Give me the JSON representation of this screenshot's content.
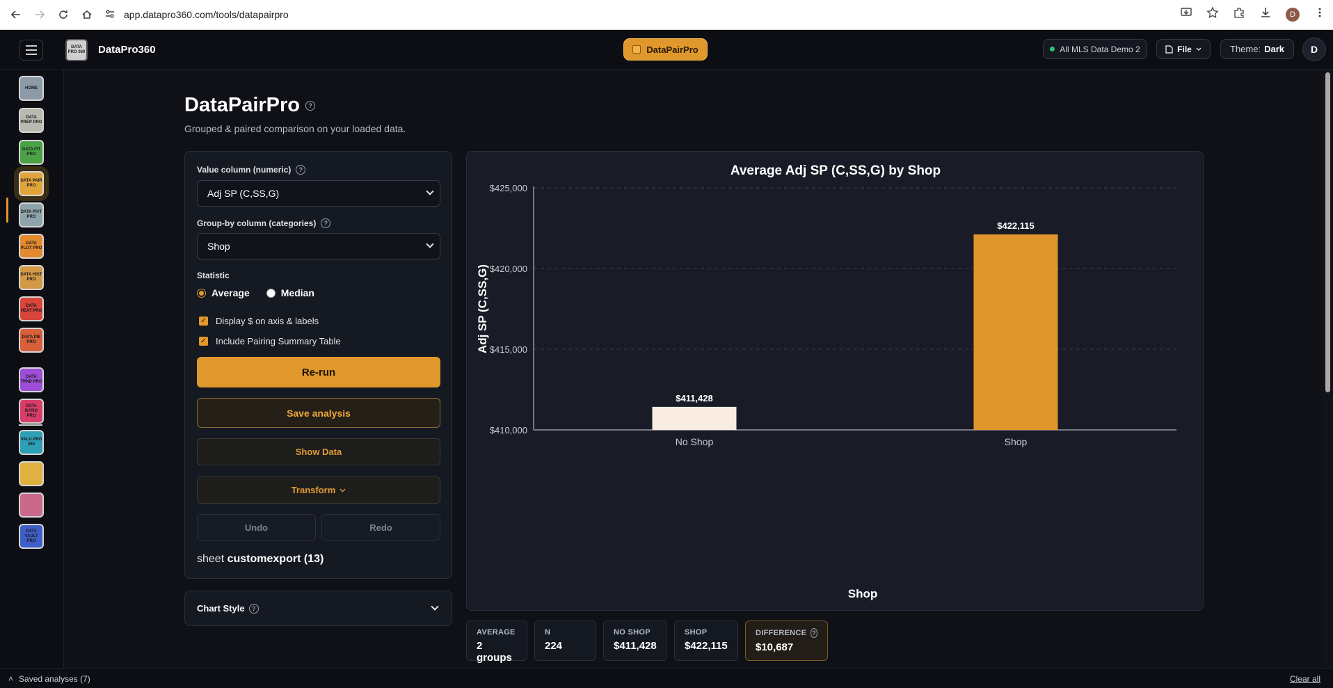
{
  "browser": {
    "url": "app.datapro360.com/tools/datapairpro",
    "profile_initial": "D"
  },
  "header": {
    "brand_name": "DataPro360",
    "brand_logo_text": "DATA PRO 360",
    "tool_pill": "DataPairPro",
    "dataset": "All MLS Data Demo 2",
    "file_label": "File",
    "theme_label": "Theme:",
    "theme_value": "Dark",
    "user_initial": "D"
  },
  "rail": {
    "items": [
      {
        "label": "HOME",
        "icon": "home-icon",
        "color": "#8c9aa8"
      },
      {
        "label": "DATA PREP PRO",
        "icon": "data-prep-pro-icon",
        "color": "#b9b9b0"
      },
      {
        "label": "DATA FIT PRO",
        "icon": "data-fit-pro-icon",
        "color": "#4aa146"
      },
      {
        "label": "DATA PAIR PRO",
        "icon": "data-pair-pro-icon",
        "color": "#e0a43a"
      },
      {
        "label": "DATA PIVT PRO",
        "icon": "data-pivt-pro-icon",
        "color": "#8fa4aa"
      },
      {
        "label": "DATA PLOT PRO",
        "icon": "data-plot-pro-icon",
        "color": "#e38a2f"
      },
      {
        "label": "DATA HIST PRO",
        "icon": "data-hist-pro-icon",
        "color": "#d29a45"
      },
      {
        "label": "DATA HEAT PRO",
        "icon": "data-heat-pro-icon",
        "color": "#d8453b"
      },
      {
        "label": "DATA PIE PRO",
        "icon": "data-pie-pro-icon",
        "color": "#d8603b"
      },
      {
        "label": "DATA TRND PRO",
        "icon": "data-trnd-pro-icon",
        "color": "#9c4fd6"
      },
      {
        "label": "DATA RATIO PRO",
        "icon": "data-ratio-pro-icon",
        "color": "#d83d6a"
      },
      {
        "label": "VALU PRO 360",
        "icon": "valu-pro-360-icon",
        "color": "#2f9fb5"
      },
      {
        "label": "",
        "icon": "grid-tool-icon",
        "color": "#e0b040"
      },
      {
        "label": "",
        "icon": "report-tool-icon",
        "color": "#c96a8a"
      },
      {
        "label": "DATA VAULT PRO",
        "icon": "data-vault-pro-icon",
        "color": "#3f5fc8"
      }
    ]
  },
  "page": {
    "title": "DataPairPro",
    "subtitle": "Grouped & paired comparison on your loaded data."
  },
  "controls": {
    "value_column_label": "Value column (numeric)",
    "value_column_selected": "Adj SP (C,SS,G)",
    "group_column_label": "Group-by column (categories)",
    "group_column_selected": "Shop",
    "statistic_label": "Statistic",
    "stat_average": "Average",
    "stat_median": "Median",
    "display_dollar_label": "Display $ on axis & labels",
    "pairing_table_label": "Include Pairing Summary Table",
    "rerun_label": "Re-run",
    "save_label": "Save analysis",
    "show_data_label": "Show Data",
    "transform_label": "Transform",
    "undo_label": "Undo",
    "redo_label": "Redo",
    "sheet_prefix": "sheet",
    "sheet_name": "customexport (13)",
    "chart_style_label": "Chart Style"
  },
  "chart_data": {
    "type": "bar",
    "title": "Average Adj SP (C,SS,G) by Shop",
    "xlabel": "Shop",
    "ylabel": "Adj SP (C,SS,G)",
    "categories": [
      "No Shop",
      "Shop"
    ],
    "values": [
      411428,
      422115
    ],
    "value_labels": [
      "$411,428",
      "$422,115"
    ],
    "bar_colors": [
      "#f8ede0",
      "#e0962a"
    ],
    "ylim": [
      410000,
      425000
    ],
    "yticks": [
      410000,
      415000,
      420000,
      425000
    ],
    "ytick_labels": [
      "$410,000",
      "$415,000",
      "$420,000",
      "$425,000"
    ],
    "grid": true
  },
  "stats": {
    "average_key": "AVERAGE",
    "average_value": "2 groups",
    "n_key": "N",
    "n_value": "224",
    "noshop_key": "NO SHOP",
    "noshop_value": "$411,428",
    "shop_key": "SHOP",
    "shop_value": "$422,115",
    "difference_key": "DIFFERENCE",
    "difference_value": "$10,687"
  },
  "footer": {
    "saved_analyses": "Saved analyses (7)",
    "clear_all": "Clear all"
  }
}
